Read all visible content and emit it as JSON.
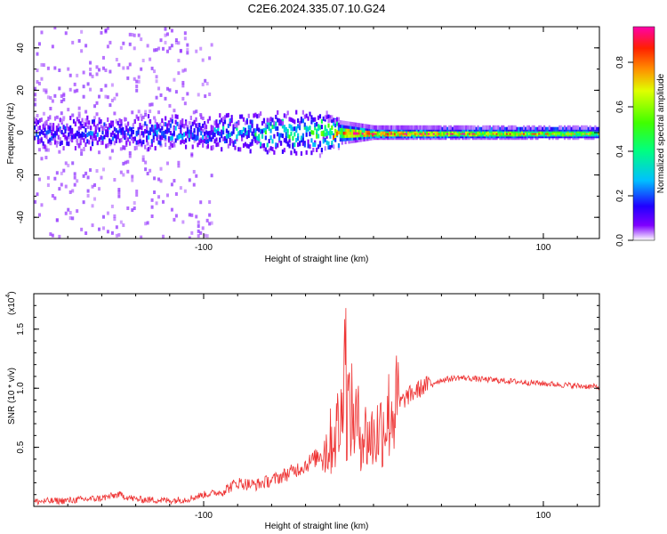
{
  "chart_data": [
    {
      "type": "heatmap",
      "title": "C2E6.2024.335.07.10.G24",
      "xlabel": "Height of straight line (km)",
      "ylabel": "Frequency (Hz)",
      "xlim": [
        -200,
        133
      ],
      "ylim": [
        -50,
        50
      ],
      "xticks": [
        -100,
        100
      ],
      "xtick_labels": [
        "-100",
        "100"
      ],
      "yticks": [
        -40,
        -20,
        0,
        20,
        40
      ],
      "ytick_labels": [
        "-40",
        "-20",
        "0",
        "20",
        "40"
      ],
      "colorbar": {
        "label": "Normalized spectral amplitude",
        "range": [
          0,
          0.96
        ],
        "ticks": [
          0.0,
          0.2,
          0.4,
          0.6,
          0.8
        ],
        "tick_labels": [
          "0.0",
          "0.2",
          "0.4",
          "0.6",
          "0.8"
        ]
      },
      "description_points": {
        "band_center_hz": 0,
        "band_halfwidth_hz_by_height": [
          [
            -200,
            6
          ],
          [
            -100,
            6
          ],
          [
            -40,
            9
          ],
          [
            -20,
            4
          ],
          [
            0,
            2
          ],
          [
            133,
            2
          ]
        ],
        "peak_amplitude_by_height": [
          [
            -200,
            0.15
          ],
          [
            -100,
            0.2
          ],
          [
            -60,
            0.35
          ],
          [
            -35,
            0.35
          ],
          [
            -10,
            0.95
          ],
          [
            10,
            0.9
          ],
          [
            133,
            0.6
          ]
        ]
      }
    },
    {
      "type": "line",
      "xlabel": "Height of straight line (km)",
      "ylabel": "SNR (10 * v/v)",
      "scale_label": "(x10",
      "scale_exp": "4",
      "scale_close": ")",
      "xlim": [
        -200,
        133
      ],
      "ylim": [
        0,
        1.8
      ],
      "xticks": [
        -100,
        100
      ],
      "xtick_labels": [
        "-100",
        "100"
      ],
      "yticks": [
        0.5,
        1.0,
        1.5
      ],
      "ytick_labels": [
        "0.5",
        "1.0",
        "1.5"
      ],
      "line_color": "#ee3333",
      "series": [
        {
          "name": "SNR",
          "x": [
            -200,
            -180,
            -160,
            -150,
            -140,
            -120,
            -110,
            -100,
            -90,
            -80,
            -70,
            -60,
            -50,
            -40,
            -30,
            -25,
            -20,
            -15,
            -10,
            -5,
            0,
            5,
            10,
            20,
            30,
            40,
            50,
            60,
            70,
            80,
            90,
            100,
            110,
            120,
            133
          ],
          "y": [
            0.04,
            0.05,
            0.07,
            0.1,
            0.06,
            0.05,
            0.06,
            0.1,
            0.12,
            0.2,
            0.18,
            0.22,
            0.28,
            0.35,
            0.45,
            0.55,
            0.7,
            0.85,
            0.7,
            0.6,
            0.58,
            0.68,
            0.8,
            0.93,
            1.02,
            1.07,
            1.09,
            1.08,
            1.07,
            1.06,
            1.05,
            1.04,
            1.03,
            1.02,
            1.01
          ]
        }
      ]
    }
  ]
}
